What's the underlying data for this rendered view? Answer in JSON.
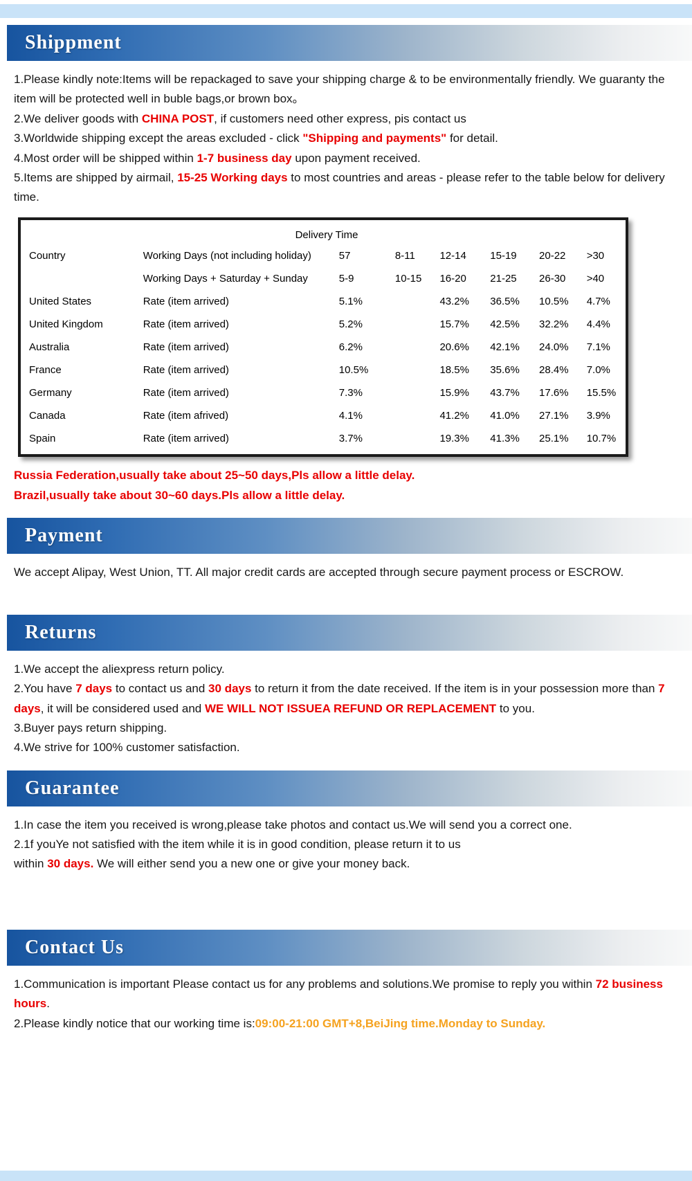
{
  "page": {
    "colors": {
      "strip_blue": "#c9e3f8",
      "banner_blue": "#17549f",
      "accent_red": "#e80000",
      "accent_orange": "#f5a21f"
    }
  },
  "sections": {
    "shipment": {
      "title": "Shippment",
      "paragraphs": [
        {
          "segments": [
            {
              "t": "1.Please kindly note:Items will be repackaged to save your shipping charge & to be environmentally friendly. We guaranty the item will be protected well in buble bags,or brown box。"
            }
          ]
        },
        {
          "segments": [
            {
              "t": "2.We deliver goods with "
            },
            {
              "t": "CHINA POST",
              "c": "red"
            },
            {
              "t": ", if customers need other express, pis contact us"
            }
          ]
        },
        {
          "segments": [
            {
              "t": "3.Worldwide shipping except the areas excluded - click "
            },
            {
              "t": "\"Shipping and payments\"",
              "c": "red"
            },
            {
              "t": " for detail."
            }
          ]
        },
        {
          "segments": [
            {
              "t": "4.Most order will be shipped within "
            },
            {
              "t": "1-7 business day",
              "c": "red"
            },
            {
              "t": " upon payment received."
            }
          ]
        },
        {
          "segments": [
            {
              "t": "5.Items are shipped by airmail, "
            },
            {
              "t": "15-25 Working days",
              "c": "red"
            },
            {
              "t": " to most countries and areas - please refer to the table below for delivery time."
            }
          ]
        }
      ],
      "table": {
        "title": "Delivery Time",
        "header_rows": [
          [
            "Country",
            "Working Days (not including holiday)",
            "57",
            "8-11",
            "12-14",
            "15-19",
            "20-22",
            ">30"
          ],
          [
            "",
            "Working Days + Saturday + Sunday",
            "5-9",
            "10-15",
            "16-20",
            "21-25",
            "26-30",
            ">40"
          ]
        ],
        "rows": [
          [
            "United States",
            "Rate (item arrived)",
            "5.1%",
            "",
            "43.2%",
            "36.5%",
            "10.5%",
            "4.7%"
          ],
          [
            "United Kingdom",
            "Rate (item arrived)",
            "5.2%",
            "",
            "15.7%",
            "42.5%",
            "32.2%",
            "4.4%"
          ],
          [
            "Australia",
            "Rate (item arrived)",
            "6.2%",
            "",
            "20.6%",
            "42.1%",
            "24.0%",
            "7.1%"
          ],
          [
            "France",
            "Rate (item arrived)",
            "10.5%",
            "",
            "18.5%",
            "35.6%",
            "28.4%",
            "7.0%"
          ],
          [
            "Germany",
            "Rate (item arrived)",
            "7.3%",
            "",
            "15.9%",
            "43.7%",
            "17.6%",
            "15.5%"
          ],
          [
            "Canada",
            "Rate (item afrived)",
            "4.1%",
            "",
            "41.2%",
            "41.0%",
            "27.1%",
            "3.9%"
          ],
          [
            "Spain",
            "Rate (item arrived)",
            "3.7%",
            "",
            "19.3%",
            "41.3%",
            "25.1%",
            "10.7%"
          ]
        ]
      },
      "notes": [
        "Russia Federation,usually take about 25~50 days,Pls allow a little delay.",
        "Brazil,usually take about 30~60 days.Pls allow a little delay."
      ]
    },
    "payment": {
      "title": "Payment",
      "paragraphs": [
        {
          "segments": [
            {
              "t": "We accept Alipay, West Union, TT. All major credit cards are accepted through secure payment process or ESCROW."
            }
          ]
        }
      ]
    },
    "returns": {
      "title": "Returns",
      "paragraphs": [
        {
          "segments": [
            {
              "t": "1.We accept the aliexpress return policy."
            }
          ]
        },
        {
          "segments": [
            {
              "t": "2.You have "
            },
            {
              "t": "7 days",
              "c": "red"
            },
            {
              "t": " to contact us and "
            },
            {
              "t": "30 days",
              "c": "red"
            },
            {
              "t": " to return it from the date received. If the item is in your possession more than "
            },
            {
              "t": "7 days",
              "c": "red"
            },
            {
              "t": ", it will be considered used and "
            },
            {
              "t": "WE WILL NOT ISSUEA REFUND OR REPLACEMENT",
              "c": "red"
            },
            {
              "t": " to you."
            }
          ]
        },
        {
          "segments": [
            {
              "t": "3.Buyer pays return shipping."
            }
          ]
        },
        {
          "segments": [
            {
              "t": "4.We strive for 100% customer satisfaction."
            }
          ]
        }
      ]
    },
    "guarantee": {
      "title": "Guarantee",
      "paragraphs": [
        {
          "segments": [
            {
              "t": "1.In case the item you received is wrong,please take photos and contact us.We will send you a correct one."
            }
          ]
        },
        {
          "segments": [
            {
              "t": "2.1f youYe not satisfied with the item while it is in good condition, please return it to us"
            },
            {
              "br": true
            },
            {
              "t": "within "
            },
            {
              "t": "30 days.",
              "c": "red"
            },
            {
              "t": " We will either send you a new one or give your money back."
            }
          ]
        }
      ]
    },
    "contact": {
      "title": "Contact Us",
      "paragraphs": [
        {
          "segments": [
            {
              "t": "1.Communication is important Please contact us for any problems and solutions.We promise to reply you within "
            },
            {
              "t": "72 business hours",
              "c": "red"
            },
            {
              "t": "."
            }
          ]
        },
        {
          "segments": [
            {
              "t": "2.Please kindly notice that our working time is:"
            },
            {
              "t": "09:00-21:00 GMT+8,BeiJing time.Monday to Sunday.",
              "c": "orange"
            }
          ]
        }
      ]
    }
  }
}
